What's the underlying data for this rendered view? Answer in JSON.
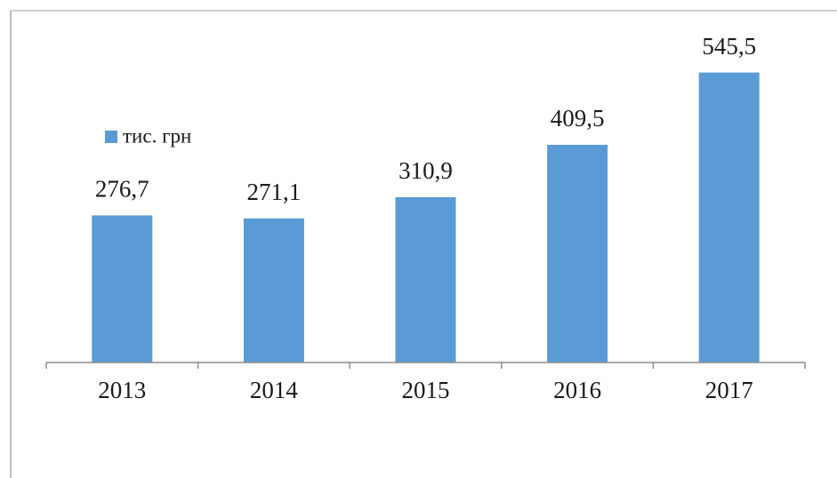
{
  "chart_data": {
    "type": "bar",
    "categories": [
      "2013",
      "2014",
      "2015",
      "2016",
      "2017"
    ],
    "series": [
      {
        "name": "тис. грн",
        "color": "#5b9bd5",
        "values": [
          276.7,
          271.1,
          310.9,
          409.5,
          545.5
        ],
        "value_labels": [
          "276,7",
          "271,1",
          "310,9",
          "409,5",
          "545,5"
        ]
      }
    ],
    "ylim": [
      0,
      600
    ],
    "legend": "top-left"
  }
}
